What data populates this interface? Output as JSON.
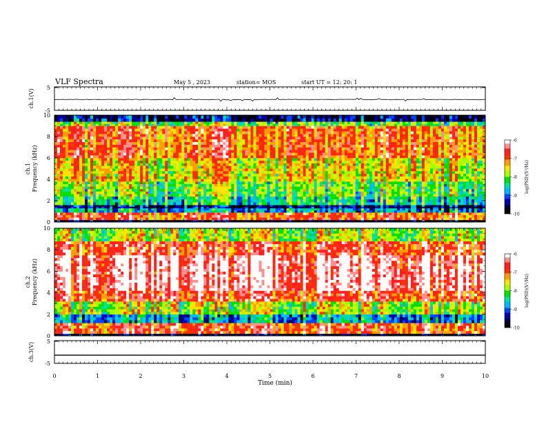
{
  "header": {
    "title": "VLF Spectra",
    "date": "May 5 , 2023",
    "station": "station= MOS",
    "start": "start  UT =   12: 20: 1"
  },
  "colors": {
    "colormap": [
      "#000000",
      "#000033",
      "#0000aa",
      "#0044ff",
      "#00b8ff",
      "#00e0a0",
      "#00e000",
      "#a8ff00",
      "#ffe400",
      "#ffa000",
      "#ff3000",
      "#ff2020",
      "#ff9090",
      "#ffffff"
    ],
    "trace": "#000000"
  },
  "chart_data": [
    {
      "type": "line",
      "name": "ch1-waveform",
      "ylabel": "ch.1(V)",
      "ylim": [
        -5,
        5
      ],
      "ytick_labels": [
        "5",
        "-5"
      ],
      "x": [
        0,
        10
      ],
      "y": [
        -0.4,
        -0.4
      ],
      "note_values": "waveform hovering near -0.4 V with small spikes"
    },
    {
      "type": "heatmap",
      "name": "ch1-spectrogram",
      "ylabel": "ch.1\nFrequency (kHz)",
      "ylim": [
        0,
        10
      ],
      "xlim": [
        0,
        10
      ],
      "ytick_labels": [
        "0",
        "2",
        "4",
        "6",
        "8",
        "10"
      ],
      "colorbar": {
        "label": "log(PSD)(V²/Hz)",
        "range": [
          -10,
          -6
        ],
        "tick_labels": [
          "-6",
          "-7",
          "-8",
          "-9",
          "-10"
        ]
      },
      "bands": [
        {
          "f": [
            0.0,
            0.2
          ],
          "level": 0.05
        },
        {
          "f": [
            0.2,
            0.9
          ],
          "level": 0.78
        },
        {
          "f": [
            0.9,
            1.3
          ],
          "level": 0.3
        },
        {
          "f": [
            1.3,
            1.6
          ],
          "level": 0.12
        },
        {
          "f": [
            1.6,
            2.4
          ],
          "level": 0.4
        },
        {
          "f": [
            2.4,
            3.8
          ],
          "level": 0.5
        },
        {
          "f": [
            3.8,
            6.0
          ],
          "level": 0.62
        },
        {
          "f": [
            6.0,
            9.0
          ],
          "level": 0.76
        },
        {
          "f": [
            9.0,
            9.4
          ],
          "level": 0.5
        },
        {
          "f": [
            9.4,
            10.0
          ],
          "level": 0.12
        }
      ]
    },
    {
      "type": "heatmap",
      "name": "ch2-spectrogram",
      "ylabel": "ch.2\nFrequency (kHz)",
      "ylim": [
        0,
        10
      ],
      "xlim": [
        0,
        10
      ],
      "ytick_labels": [
        "0",
        "2",
        "4",
        "6",
        "8",
        "10"
      ],
      "colorbar": {
        "label": "log(PSD)(V²/Hz)",
        "range": [
          -10,
          -6
        ],
        "tick_labels": [
          "-6",
          "-7",
          "-8",
          "-9",
          "-10"
        ]
      },
      "bands": [
        {
          "f": [
            0.0,
            0.2
          ],
          "level": 0.05
        },
        {
          "f": [
            0.2,
            1.2
          ],
          "level": 0.8
        },
        {
          "f": [
            1.2,
            2.0
          ],
          "level": 0.3
        },
        {
          "f": [
            2.0,
            3.2
          ],
          "level": 0.55
        },
        {
          "f": [
            3.2,
            4.2
          ],
          "level": 0.82
        },
        {
          "f": [
            4.2,
            7.5
          ],
          "level": 0.95
        },
        {
          "f": [
            7.5,
            8.8
          ],
          "level": 0.82
        },
        {
          "f": [
            8.8,
            10.0
          ],
          "level": 0.55
        }
      ]
    },
    {
      "type": "line",
      "name": "ch3-waveform",
      "ylabel": "ch.3(V)",
      "ylim": [
        -5,
        5
      ],
      "ytick_labels": [
        "5",
        "-5"
      ],
      "x": [
        0,
        10
      ],
      "y": [
        -1.4,
        -1.4
      ]
    }
  ],
  "xaxis": {
    "label": "Time  (min)",
    "range": [
      0,
      10
    ],
    "tick_labels": [
      "0",
      "1",
      "2",
      "3",
      "4",
      "5",
      "6",
      "7",
      "8",
      "9",
      "10"
    ]
  }
}
